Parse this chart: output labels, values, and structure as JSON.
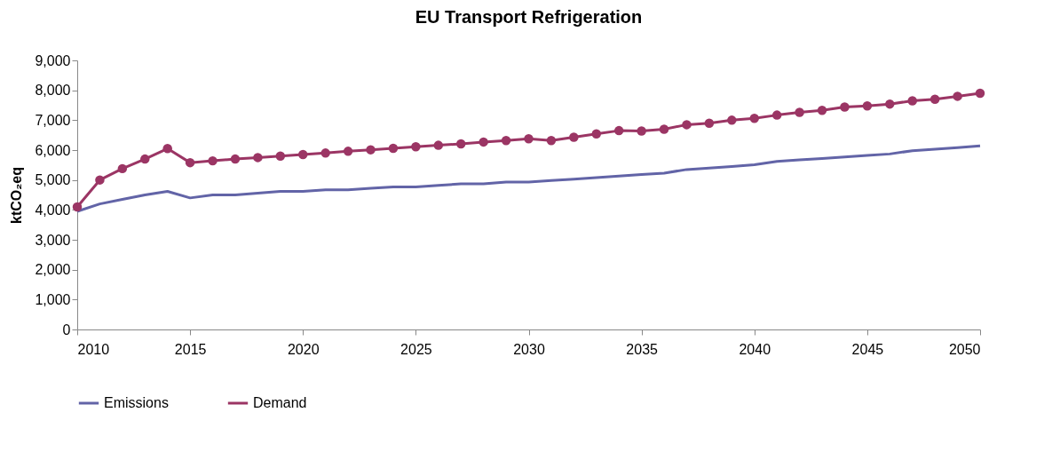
{
  "chart_data": {
    "type": "line",
    "title": "EU Transport Refrigeration",
    "ylabel": "ktCO₂eq",
    "x": [
      2010,
      2011,
      2012,
      2013,
      2014,
      2015,
      2016,
      2017,
      2018,
      2019,
      2020,
      2021,
      2022,
      2023,
      2024,
      2025,
      2026,
      2027,
      2028,
      2029,
      2030,
      2031,
      2032,
      2033,
      2034,
      2035,
      2036,
      2037,
      2038,
      2039,
      2040,
      2041,
      2042,
      2043,
      2044,
      2045,
      2046,
      2047,
      2048,
      2049,
      2050
    ],
    "series": [
      {
        "name": "Emissions",
        "color": "#6264a7",
        "marker": "none",
        "values": [
          3950,
          4200,
          4350,
          4500,
          4620,
          4400,
          4500,
          4500,
          4560,
          4620,
          4620,
          4670,
          4670,
          4720,
          4770,
          4770,
          4820,
          4870,
          4870,
          4930,
          4930,
          4980,
          5030,
          5080,
          5130,
          5180,
          5230,
          5350,
          5400,
          5450,
          5510,
          5620,
          5670,
          5720,
          5770,
          5820,
          5870,
          5980,
          6030,
          6080,
          6140
        ]
      },
      {
        "name": "Demand",
        "color": "#9b3564",
        "marker": "circle",
        "values": [
          4100,
          5000,
          5380,
          5700,
          6050,
          5580,
          5640,
          5700,
          5750,
          5800,
          5850,
          5900,
          5960,
          6010,
          6060,
          6110,
          6160,
          6210,
          6270,
          6320,
          6380,
          6320,
          6430,
          6540,
          6650,
          6640,
          6700,
          6850,
          6900,
          7000,
          7060,
          7170,
          7260,
          7330,
          7440,
          7480,
          7540,
          7650,
          7700,
          7800,
          7900
        ]
      }
    ],
    "xlim": [
      2010,
      2050
    ],
    "xticks": [
      2010,
      2015,
      2020,
      2025,
      2030,
      2035,
      2040,
      2045,
      2050
    ],
    "ylim": [
      0,
      9000
    ],
    "yticks": [
      {
        "value": 0,
        "label": "0"
      },
      {
        "value": 1000,
        "label": "1,000"
      },
      {
        "value": 2000,
        "label": "2,000"
      },
      {
        "value": 3000,
        "label": "3,000"
      },
      {
        "value": 4000,
        "label": "4,000"
      },
      {
        "value": 5000,
        "label": "5,000"
      },
      {
        "value": 6000,
        "label": "6,000"
      },
      {
        "value": 7000,
        "label": "7,000"
      },
      {
        "value": 8000,
        "label": "8,000"
      },
      {
        "value": 9000,
        "label": "9,000"
      }
    ],
    "grid": false,
    "legend": "bottom"
  }
}
